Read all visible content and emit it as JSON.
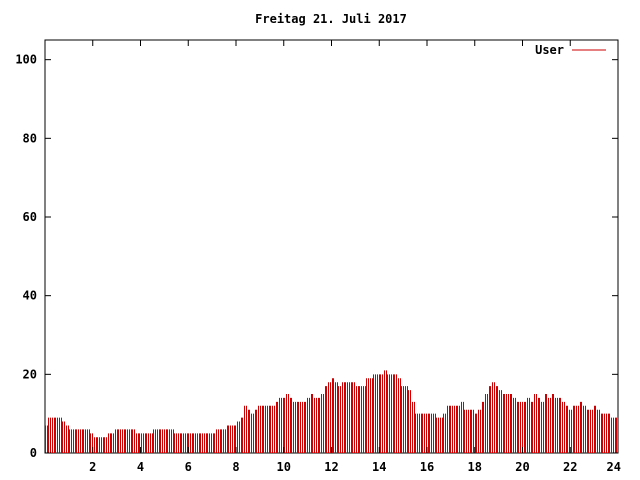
{
  "chart_data": {
    "type": "bar",
    "title": "Freitag 21. Juli 2017",
    "xlabel": "",
    "ylabel": "",
    "xlim": [
      0,
      24
    ],
    "ylim": [
      0,
      105
    ],
    "x_ticks": [
      "2",
      "4",
      "6",
      "8",
      "10",
      "12",
      "14",
      "16",
      "18",
      "20",
      "22",
      "24"
    ],
    "x_tick_values": [
      2,
      4,
      6,
      8,
      10,
      12,
      14,
      16,
      18,
      20,
      22,
      24
    ],
    "y_ticks": [
      "0",
      "20",
      "40",
      "60",
      "80",
      "100"
    ],
    "y_tick_values": [
      0,
      20,
      40,
      60,
      80,
      100
    ],
    "grid": false,
    "legend_position": "top-right",
    "series": [
      {
        "name": "User",
        "color": "#cc0000",
        "values": [
          7,
          7,
          9,
          9,
          9,
          9,
          9,
          9,
          9,
          9,
          8,
          8,
          7,
          7,
          6,
          6,
          6,
          6,
          6,
          6,
          6,
          6,
          6,
          6,
          6,
          6,
          5,
          5,
          4,
          4,
          4,
          4,
          4,
          4,
          4,
          4,
          5,
          5,
          5,
          5,
          6,
          6,
          6,
          6,
          6,
          6,
          6,
          6,
          6,
          6,
          6,
          6,
          5,
          5,
          5,
          5,
          5,
          5,
          5,
          5,
          5,
          5,
          6,
          6,
          6,
          6,
          6,
          6,
          6,
          6,
          6,
          6,
          6,
          6,
          5,
          5,
          5,
          5,
          5,
          5,
          5,
          5,
          5,
          5,
          5,
          5,
          5,
          5,
          5,
          5,
          5,
          5,
          5,
          5,
          5,
          5,
          5,
          5,
          6,
          6,
          6,
          6,
          6,
          6,
          7,
          7,
          7,
          7,
          7,
          7,
          8,
          8,
          9,
          9,
          12,
          12,
          11,
          11,
          10,
          10,
          11,
          11,
          12,
          12,
          12,
          12,
          12,
          12,
          12,
          12,
          12,
          12,
          13,
          13,
          14,
          14,
          14,
          14,
          15,
          15,
          14,
          14,
          13,
          13,
          13,
          13,
          13,
          13,
          13,
          13,
          14,
          14,
          15,
          15,
          14,
          14,
          14,
          14,
          15,
          15,
          17,
          17,
          18,
          18,
          19,
          19,
          18,
          18,
          17,
          17,
          18,
          18,
          18,
          18,
          18,
          18,
          18,
          18,
          17,
          17,
          17,
          17,
          17,
          17,
          19,
          19,
          19,
          19,
          20,
          20,
          20,
          20,
          20,
          20,
          21,
          21,
          20,
          20,
          20,
          20,
          20,
          20,
          19,
          19,
          17,
          17,
          17,
          17,
          16,
          16,
          13,
          13,
          10,
          10,
          10,
          10,
          10,
          10,
          10,
          10,
          10,
          10,
          10,
          10,
          9,
          9,
          9,
          9,
          10,
          10,
          12,
          12,
          12,
          12,
          12,
          12,
          12,
          12,
          13,
          13,
          11,
          11,
          11,
          11,
          11,
          11,
          10,
          10,
          11,
          11,
          13,
          13,
          15,
          15,
          17,
          17,
          18,
          18,
          17,
          17,
          16,
          16,
          15,
          15,
          15,
          15,
          15,
          15,
          14,
          14,
          13,
          13,
          13,
          13,
          13,
          13,
          14,
          14,
          13,
          13,
          15,
          15,
          14,
          14,
          13,
          13,
          15,
          15,
          14,
          14,
          15,
          15,
          14,
          14,
          14,
          14,
          13,
          13,
          12,
          12,
          11,
          11,
          12,
          12,
          12,
          12,
          13,
          13,
          12,
          12,
          11,
          11,
          11,
          11,
          12,
          12,
          11,
          11,
          10,
          10,
          10,
          10,
          10,
          10,
          9,
          9,
          9,
          9
        ]
      }
    ]
  }
}
